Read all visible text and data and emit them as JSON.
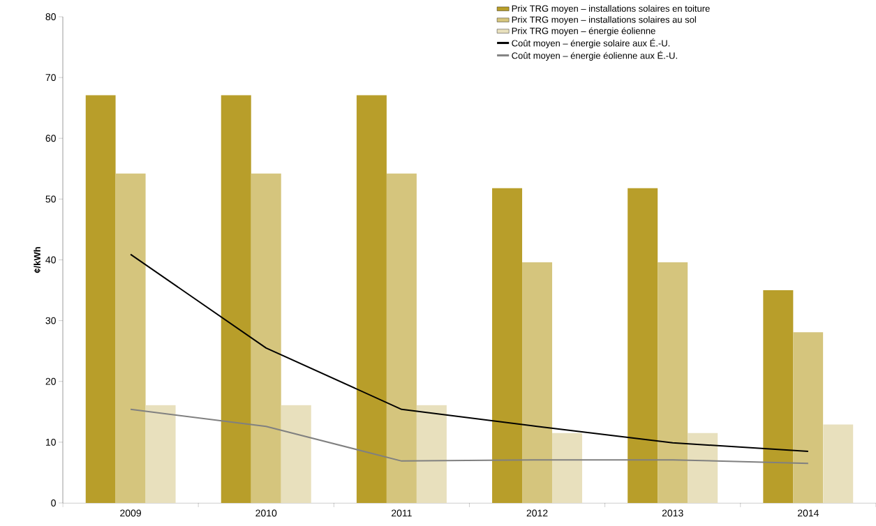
{
  "chart_data": {
    "type": "bar",
    "ylabel": "¢/kWh",
    "categories": [
      "2009",
      "2010",
      "2011",
      "2012",
      "2013",
      "2014"
    ],
    "ylim": [
      0,
      80
    ],
    "yticks": [
      0,
      10,
      20,
      30,
      40,
      50,
      60,
      70,
      80
    ],
    "grid": false,
    "legend": "top right",
    "series": [
      {
        "name": "Prix TRG moyen – installations solaires en toiture",
        "type": "bar",
        "color": "#b89e2a",
        "values": [
          67.1,
          67.1,
          67.1,
          51.8,
          51.8,
          35.0
        ]
      },
      {
        "name": "Prix TRG moyen – installations solaires au sol",
        "type": "bar",
        "color": "#d5c57d",
        "values": [
          54.2,
          54.2,
          54.2,
          39.6,
          39.6,
          28.1
        ]
      },
      {
        "name": "Prix TRG moyen – énergie éolienne",
        "type": "bar",
        "color": "#e8e0bd",
        "values": [
          16.1,
          16.1,
          16.1,
          11.5,
          11.5,
          12.9
        ]
      },
      {
        "name": "Coût moyen – énergie solaire aux É.-U.",
        "type": "line",
        "color": "#000000",
        "values": [
          40.9,
          25.5,
          15.4,
          12.6,
          9.9,
          8.5
        ]
      },
      {
        "name": "Coût moyen – énergie éolienne aux É.-U.",
        "type": "line",
        "color": "#808080",
        "values": [
          15.4,
          12.6,
          6.9,
          7.1,
          7.1,
          6.5
        ]
      }
    ]
  }
}
